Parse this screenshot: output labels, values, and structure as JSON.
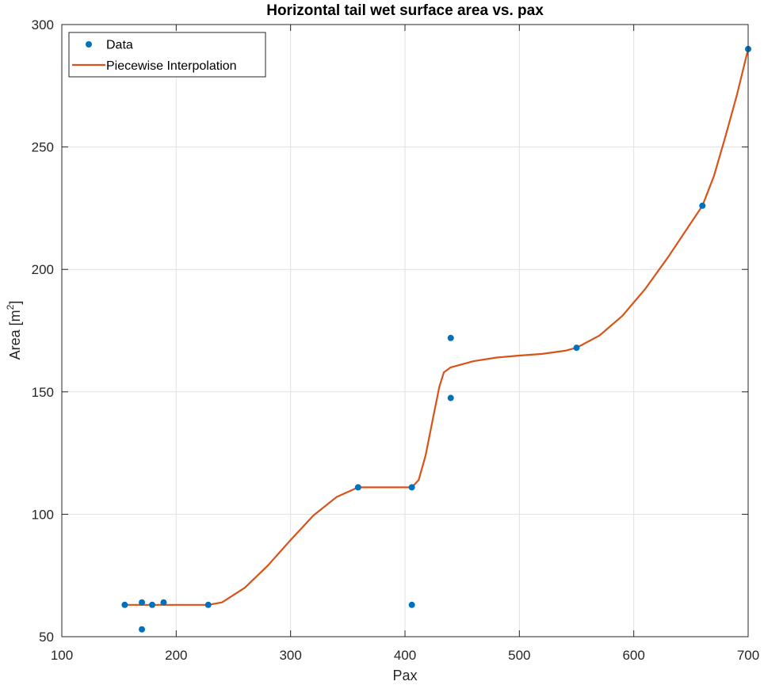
{
  "chart_data": {
    "type": "scatter",
    "title": "Horizontal tail wet surface area vs. pax",
    "xlabel": "Pax",
    "ylabel": "Area [m",
    "ylabel_sup": "2",
    "ylabel_close": "]",
    "xlim": [
      100,
      700
    ],
    "ylim": [
      50,
      300
    ],
    "xticks": [
      100,
      200,
      300,
      400,
      500,
      600,
      700
    ],
    "yticks": [
      50,
      100,
      150,
      200,
      250,
      300
    ],
    "grid": true,
    "legend_position": "top-left",
    "series": [
      {
        "name": "Data",
        "kind": "markers",
        "color": "#0072BD",
        "points": [
          {
            "x": 155,
            "y": 63
          },
          {
            "x": 170,
            "y": 64
          },
          {
            "x": 170,
            "y": 53
          },
          {
            "x": 179,
            "y": 63
          },
          {
            "x": 189,
            "y": 64
          },
          {
            "x": 228,
            "y": 63
          },
          {
            "x": 359,
            "y": 111
          },
          {
            "x": 406,
            "y": 111
          },
          {
            "x": 406,
            "y": 63
          },
          {
            "x": 440,
            "y": 172
          },
          {
            "x": 440,
            "y": 147.5
          },
          {
            "x": 550,
            "y": 168
          },
          {
            "x": 660,
            "y": 226
          },
          {
            "x": 700,
            "y": 290
          }
        ]
      },
      {
        "name": "Piecewise Interpolation",
        "kind": "line",
        "color": "#D95319",
        "points": [
          {
            "x": 155,
            "y": 63
          },
          {
            "x": 228,
            "y": 63
          },
          {
            "x": 240,
            "y": 64
          },
          {
            "x": 260,
            "y": 70
          },
          {
            "x": 280,
            "y": 79
          },
          {
            "x": 300,
            "y": 89.5
          },
          {
            "x": 320,
            "y": 99.5
          },
          {
            "x": 340,
            "y": 107
          },
          {
            "x": 359,
            "y": 111
          },
          {
            "x": 406,
            "y": 111
          },
          {
            "x": 412,
            "y": 114
          },
          {
            "x": 418,
            "y": 124
          },
          {
            "x": 424,
            "y": 138
          },
          {
            "x": 430,
            "y": 152
          },
          {
            "x": 434,
            "y": 158
          },
          {
            "x": 440,
            "y": 160
          },
          {
            "x": 460,
            "y": 162.5
          },
          {
            "x": 480,
            "y": 164
          },
          {
            "x": 500,
            "y": 164.8
          },
          {
            "x": 520,
            "y": 165.5
          },
          {
            "x": 540,
            "y": 166.8
          },
          {
            "x": 550,
            "y": 168
          },
          {
            "x": 570,
            "y": 173
          },
          {
            "x": 590,
            "y": 181
          },
          {
            "x": 610,
            "y": 192
          },
          {
            "x": 630,
            "y": 205
          },
          {
            "x": 650,
            "y": 219
          },
          {
            "x": 660,
            "y": 226
          },
          {
            "x": 670,
            "y": 238
          },
          {
            "x": 680,
            "y": 254
          },
          {
            "x": 690,
            "y": 271
          },
          {
            "x": 700,
            "y": 290
          }
        ]
      }
    ]
  }
}
